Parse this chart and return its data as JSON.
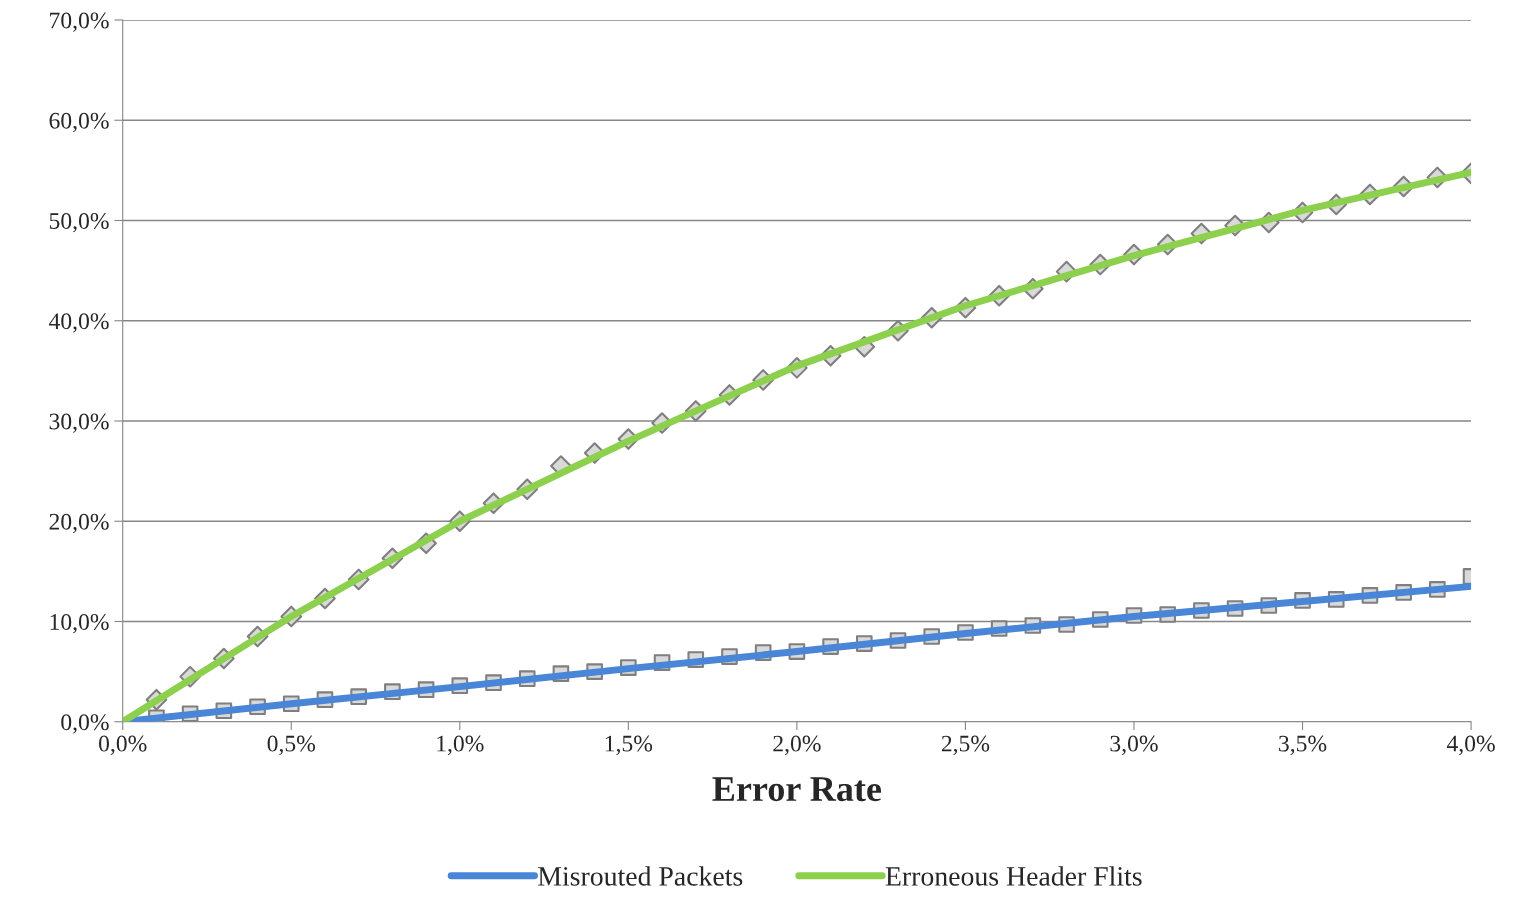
{
  "chart_data": {
    "type": "line",
    "xlabel": "Error Rate",
    "x": [
      0.1,
      0.2,
      0.3,
      0.4,
      0.5,
      0.6,
      0.7,
      0.8,
      0.9,
      1.0,
      1.1,
      1.2,
      1.3,
      1.4,
      1.5,
      1.6,
      1.7,
      1.8,
      1.9,
      2.0,
      2.1,
      2.2,
      2.3,
      2.4,
      2.5,
      2.6,
      2.7,
      2.8,
      2.9,
      3.0,
      3.1,
      3.2,
      3.3,
      3.4,
      3.5,
      3.6,
      3.7,
      3.8,
      3.9,
      4.0
    ],
    "series": [
      {
        "type": "scatter",
        "marker": "square",
        "color": "#d9d9d9",
        "values": [
          0.4,
          0.8,
          1.1,
          1.5,
          1.8,
          2.2,
          2.5,
          3.0,
          3.2,
          3.6,
          3.9,
          4.3,
          4.8,
          5.0,
          5.4,
          5.9,
          6.2,
          6.5,
          6.9,
          7.0,
          7.5,
          7.8,
          8.1,
          8.5,
          8.9,
          9.3,
          9.6,
          9.7,
          10.2,
          10.6,
          10.7,
          11.1,
          11.3,
          11.6,
          12.1,
          12.2,
          12.6,
          12.9,
          13.2,
          14.5
        ]
      },
      {
        "type": "scatter",
        "marker": "diamond",
        "color": "#d9d9d9",
        "values": [
          2.2,
          4.5,
          6.3,
          8.5,
          10.5,
          12.3,
          14.2,
          16.3,
          17.8,
          20,
          21.8,
          23.2,
          25.5,
          26.8,
          28.2,
          29.8,
          31.0,
          32.6,
          34.1,
          35.3,
          36.5,
          37.4,
          39.0,
          40.3,
          41.3,
          42.5,
          43.2,
          44.9,
          45.6,
          46.6,
          47.6,
          48.7,
          49.5,
          49.8,
          50.8,
          51.6,
          52.6,
          53.4,
          54.3,
          54.7
        ]
      },
      {
        "name": "Misrouted Packets",
        "color": "#4a86d8",
        "x": [
          0,
          0.5,
          1.0,
          1.5,
          2.0,
          2.5,
          3.0,
          3.5,
          4.0
        ],
        "values": [
          0,
          1.8,
          3.5,
          5.3,
          7.0,
          8.8,
          10.5,
          12.0,
          13.5
        ]
      },
      {
        "name": "Erroneous Header Flits",
        "color": "#8cd04e",
        "x": [
          0,
          0.5,
          1.0,
          1.5,
          2.0,
          2.5,
          3.0,
          3.5,
          4.0
        ],
        "values": [
          0,
          10.5,
          20.0,
          28.0,
          35.5,
          41.5,
          46.5,
          51.0,
          54.8
        ]
      }
    ],
    "xlim": [
      0,
      4
    ],
    "xticks": [
      {
        "value": 0,
        "label": "0,0%"
      },
      {
        "value": 0.5,
        "label": "0,5%"
      },
      {
        "value": 1,
        "label": "1,0%"
      },
      {
        "value": 1.5,
        "label": "1,5%"
      },
      {
        "value": 2,
        "label": "2,0%"
      },
      {
        "value": 2.5,
        "label": "2,5%"
      },
      {
        "value": 3,
        "label": "3,0%"
      },
      {
        "value": 3.5,
        "label": "3,5%"
      },
      {
        "value": 4,
        "label": "4,0%"
      }
    ],
    "ylim": [
      0,
      70
    ],
    "yticks": [
      {
        "value": 0,
        "label": "0,0%"
      },
      {
        "value": 10,
        "label": "10,0%"
      },
      {
        "value": 20,
        "label": "20,0%"
      },
      {
        "value": 30,
        "label": "30,0%"
      },
      {
        "value": 40,
        "label": "40,0%"
      },
      {
        "value": 50,
        "label": "50,0%"
      },
      {
        "value": 60,
        "label": "60,0%"
      },
      {
        "value": 70,
        "label": "70,0%"
      }
    ],
    "grid": "y",
    "legend": "bottom",
    "marker": "none"
  }
}
